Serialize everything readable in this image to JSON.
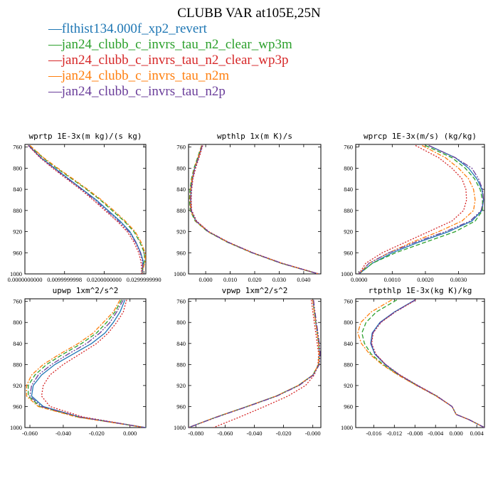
{
  "title": "CLUBB VAR at105E,25N",
  "colors": {
    "blue": "#1f77b4",
    "green": "#2ca02c",
    "red": "#d62728",
    "orange": "#ff7f0e",
    "purple": "#6a3d9a"
  },
  "legend": [
    {
      "label": "flthist134.000f_xp2_revert",
      "color": "#1f77b4",
      "dash": "solid"
    },
    {
      "label": "jan24_clubb_c_invrs_tau_n2_clear_wp3m",
      "color": "#2ca02c",
      "dash": "6,3"
    },
    {
      "label": "jan24_clubb_c_invrs_tau_n2_clear_wp3p",
      "color": "#d62728",
      "dash": "2,2"
    },
    {
      "label": "jan24_clubb_c_invrs_tau_n2m",
      "color": "#ff7f0e",
      "dash": "6,2,2,2"
    },
    {
      "label": "jan24_clubb_c_invrs_tau_n2p",
      "color": "#6a3d9a",
      "dash": "8,2,2,2,2,2"
    }
  ],
  "chart_data": [
    {
      "type": "line",
      "title": "wprtp 1E-3x(m kg)/(s kg)",
      "xlim": [
        0,
        0.0305
      ],
      "ylim": [
        1000,
        755
      ],
      "y_reversed": true,
      "xticks": [
        0,
        0.0099999998,
        0.02,
        0.029999999
      ],
      "xtick_labels": [
        "0.0000000000",
        "0.0099999998",
        "0.0200000000",
        "0.0299999990"
      ],
      "yticks": [
        760,
        800,
        840,
        880,
        920,
        960,
        1000
      ],
      "y": [
        757,
        780,
        800,
        820,
        840,
        860,
        880,
        900,
        920,
        940,
        960,
        975,
        985,
        995,
        1000
      ],
      "series": [
        {
          "name": "flthist134.000f_xp2_revert",
          "values": [
            0.001,
            0.004,
            0.0075,
            0.011,
            0.0145,
            0.018,
            0.021,
            0.024,
            0.0265,
            0.028,
            0.0292,
            0.0298,
            0.0298,
            0.0297,
            0.0296
          ]
        },
        {
          "name": "jan24_clubb_c_invrs_tau_n2_clear_wp3m",
          "values": [
            0.0012,
            0.0045,
            0.008,
            0.0118,
            0.0155,
            0.019,
            0.022,
            0.025,
            0.0275,
            0.029,
            0.0301,
            0.0302,
            0.0298,
            0.0295,
            0.0294
          ]
        },
        {
          "name": "jan24_clubb_c_invrs_tau_n2_clear_wp3p",
          "values": [
            0.0008,
            0.0038,
            0.007,
            0.0105,
            0.014,
            0.0172,
            0.0202,
            0.0232,
            0.0258,
            0.0275,
            0.0287,
            0.0292,
            0.0294,
            0.0294,
            0.0293
          ]
        },
        {
          "name": "jan24_clubb_c_invrs_tau_n2m",
          "values": [
            0.0013,
            0.0047,
            0.0083,
            0.0121,
            0.0158,
            0.0193,
            0.0224,
            0.0253,
            0.0278,
            0.0293,
            0.0303,
            0.0304,
            0.03,
            0.0297,
            0.0296
          ]
        },
        {
          "name": "jan24_clubb_c_invrs_tau_n2p",
          "values": [
            0.0009,
            0.004,
            0.0073,
            0.0108,
            0.0143,
            0.0176,
            0.0206,
            0.0236,
            0.0262,
            0.0279,
            0.0291,
            0.0296,
            0.0297,
            0.0296,
            0.0295
          ]
        }
      ]
    },
    {
      "type": "line",
      "title": "wpthlp 1x(m K)/s",
      "xlim": [
        -0.007,
        0.047
      ],
      "ylim": [
        1000,
        755
      ],
      "y_reversed": true,
      "xticks": [
        0,
        0.01,
        0.02,
        0.03,
        0.04
      ],
      "xtick_labels": [
        "0.000",
        "0.010",
        "0.020",
        "0.030",
        "0.040"
      ],
      "yticks": [
        760,
        800,
        840,
        880,
        920,
        960,
        1000
      ],
      "y": [
        757,
        780,
        800,
        820,
        840,
        860,
        880,
        900,
        920,
        940,
        960,
        980,
        1000
      ],
      "series": [
        {
          "name": "flthist134.000f_xp2_revert",
          "values": [
            -0.0015,
            -0.003,
            -0.0045,
            -0.0055,
            -0.006,
            -0.0062,
            -0.006,
            -0.004,
            0.001,
            0.009,
            0.019,
            0.031,
            0.046
          ]
        },
        {
          "name": "jan24_clubb_c_invrs_tau_n2_clear_wp3m",
          "values": [
            -0.0017,
            -0.0033,
            -0.0048,
            -0.0058,
            -0.0064,
            -0.0066,
            -0.0063,
            -0.0043,
            0.0008,
            0.0088,
            0.0188,
            0.0308,
            0.0458
          ]
        },
        {
          "name": "jan24_clubb_c_invrs_tau_n2_clear_wp3p",
          "values": [
            -0.0012,
            -0.0027,
            -0.0041,
            -0.0052,
            -0.0057,
            -0.0059,
            -0.0057,
            -0.0037,
            0.0013,
            0.0093,
            0.0193,
            0.0313,
            0.0462
          ]
        },
        {
          "name": "jan24_clubb_c_invrs_tau_n2m",
          "values": [
            -0.0016,
            -0.0031,
            -0.0046,
            -0.0056,
            -0.0062,
            -0.0064,
            -0.0061,
            -0.0041,
            0.001,
            0.009,
            0.019,
            0.031,
            0.046
          ]
        },
        {
          "name": "jan24_clubb_c_invrs_tau_n2p",
          "values": [
            -0.0014,
            -0.0029,
            -0.0044,
            -0.0054,
            -0.0059,
            -0.0061,
            -0.0059,
            -0.0039,
            0.0011,
            0.0091,
            0.0191,
            0.0311,
            0.046
          ]
        }
      ]
    },
    {
      "type": "line",
      "title": "wprcp 1E-3x(m/s) (kg/kg)",
      "xlim": [
        -0.0001,
        0.00378
      ],
      "ylim": [
        1000,
        755
      ],
      "y_reversed": true,
      "xticks": [
        0,
        0.001,
        0.002,
        0.003
      ],
      "xtick_labels": [
        "0.0000",
        "0.0010",
        "0.0020",
        "0.0030"
      ],
      "yticks": [
        760,
        800,
        840,
        880,
        920,
        960,
        1000
      ],
      "y": [
        757,
        780,
        800,
        820,
        840,
        860,
        880,
        900,
        920,
        940,
        960,
        980,
        1000
      ],
      "series": [
        {
          "name": "flthist134.000f_xp2_revert",
          "values": [
            0.0021,
            0.0029,
            0.0033,
            0.00355,
            0.0037,
            0.00375,
            0.0037,
            0.0034,
            0.0027,
            0.0018,
            0.001,
            0.0004,
            0.0
          ]
        },
        {
          "name": "jan24_clubb_c_invrs_tau_n2_clear_wp3m",
          "values": [
            0.002,
            0.0028,
            0.0032,
            0.00348,
            0.00365,
            0.00372,
            0.00372,
            0.0035,
            0.0029,
            0.002,
            0.0011,
            0.0004,
            0.0
          ]
        },
        {
          "name": "jan24_clubb_c_invrs_tau_n2_clear_wp3p",
          "values": [
            0.0017,
            0.0024,
            0.0028,
            0.0031,
            0.00322,
            0.00324,
            0.00315,
            0.0028,
            0.0021,
            0.0014,
            0.0007,
            0.0002,
            0.0
          ]
        },
        {
          "name": "jan24_clubb_c_invrs_tau_n2m",
          "values": [
            0.0019,
            0.0026,
            0.003,
            0.0033,
            0.00345,
            0.0035,
            0.00345,
            0.0031,
            0.0024,
            0.0016,
            0.0009,
            0.0003,
            0.0
          ]
        },
        {
          "name": "jan24_clubb_c_invrs_tau_n2p",
          "values": [
            0.0021,
            0.0029,
            0.0034,
            0.0036,
            0.00372,
            0.00375,
            0.00368,
            0.00335,
            0.0026,
            0.0017,
            0.0009,
            0.0003,
            0.0
          ]
        }
      ]
    },
    {
      "type": "line",
      "title": "upwp 1xm^2/s^2",
      "xlim": [
        -0.063,
        0.0095
      ],
      "ylim": [
        1000,
        755
      ],
      "y_reversed": true,
      "xticks": [
        -0.06,
        -0.04,
        -0.02,
        0
      ],
      "xtick_labels": [
        "-0.060",
        "-0.040",
        "-0.020",
        "0.000"
      ],
      "yticks": [
        760,
        800,
        840,
        880,
        920,
        960,
        1000
      ],
      "y": [
        757,
        780,
        800,
        820,
        840,
        860,
        880,
        900,
        920,
        940,
        960,
        980,
        1000
      ],
      "series": [
        {
          "name": "flthist134.000f_xp2_revert",
          "values": [
            -0.003,
            -0.006,
            -0.01,
            -0.015,
            -0.023,
            -0.034,
            -0.045,
            -0.053,
            -0.058,
            -0.059,
            -0.052,
            -0.03,
            0.0095
          ]
        },
        {
          "name": "jan24_clubb_c_invrs_tau_n2_clear_wp3m",
          "values": [
            -0.005,
            -0.009,
            -0.014,
            -0.02,
            -0.029,
            -0.04,
            -0.05,
            -0.057,
            -0.061,
            -0.061,
            -0.054,
            -0.031,
            0.009
          ]
        },
        {
          "name": "jan24_clubb_c_invrs_tau_n2_clear_wp3p",
          "values": [
            -0.002,
            -0.004,
            -0.008,
            -0.013,
            -0.02,
            -0.03,
            -0.04,
            -0.048,
            -0.052,
            -0.053,
            -0.048,
            -0.028,
            0.009
          ]
        },
        {
          "name": "jan24_clubb_c_invrs_tau_n2m",
          "values": [
            -0.006,
            -0.01,
            -0.016,
            -0.022,
            -0.031,
            -0.042,
            -0.052,
            -0.059,
            -0.062,
            -0.062,
            -0.055,
            -0.032,
            0.009
          ]
        },
        {
          "name": "jan24_clubb_c_invrs_tau_n2p",
          "values": [
            -0.004,
            -0.008,
            -0.012,
            -0.018,
            -0.026,
            -0.037,
            -0.047,
            -0.055,
            -0.059,
            -0.06,
            -0.053,
            -0.03,
            0.009
          ]
        }
      ]
    },
    {
      "type": "line",
      "title": "vpwp 1xm^2/s^2",
      "xlim": [
        -0.085,
        0.0055
      ],
      "ylim": [
        1000,
        755
      ],
      "y_reversed": true,
      "xticks": [
        -0.08,
        -0.06,
        -0.04,
        -0.02,
        0
      ],
      "xtick_labels": [
        "-0.080",
        "-0.060",
        "-0.040",
        "-0.020",
        "-0.000"
      ],
      "yticks": [
        760,
        800,
        840,
        880,
        920,
        960,
        1000
      ],
      "y": [
        757,
        780,
        800,
        820,
        840,
        860,
        880,
        900,
        920,
        940,
        960,
        980,
        1000
      ],
      "series": [
        {
          "name": "flthist134.000f_xp2_revert",
          "values": [
            0.0,
            0.001,
            0.002,
            0.003,
            0.004,
            0.0045,
            0.004,
            0.0,
            -0.01,
            -0.025,
            -0.045,
            -0.066,
            -0.085
          ]
        },
        {
          "name": "jan24_clubb_c_invrs_tau_n2_clear_wp3m",
          "values": [
            0.0,
            0.001,
            0.002,
            0.003,
            0.004,
            0.0045,
            0.004,
            0.0,
            -0.01,
            -0.025,
            -0.045,
            -0.066,
            -0.085
          ]
        },
        {
          "name": "jan24_clubb_c_invrs_tau_n2_clear_wp3p",
          "values": [
            -0.001,
            0.0,
            0.001,
            0.002,
            0.003,
            0.004,
            0.0035,
            0.001,
            -0.005,
            -0.017,
            -0.033,
            -0.05,
            -0.068
          ]
        },
        {
          "name": "jan24_clubb_c_invrs_tau_n2m",
          "values": [
            0.0,
            0.001,
            0.002,
            0.003,
            0.004,
            0.0045,
            0.004,
            0.0,
            -0.01,
            -0.025,
            -0.045,
            -0.066,
            -0.085
          ]
        },
        {
          "name": "jan24_clubb_c_invrs_tau_n2p",
          "values": [
            0.0005,
            0.0015,
            0.0025,
            0.0035,
            0.0045,
            0.005,
            0.0045,
            0.0005,
            -0.0095,
            -0.0245,
            -0.0445,
            -0.0655,
            -0.085
          ]
        }
      ]
    },
    {
      "type": "line",
      "title": "rtpthlp 1E-3x(kg K)/kg",
      "xlim": [
        -0.0195,
        0.0055
      ],
      "ylim": [
        1000,
        755
      ],
      "y_reversed": true,
      "xticks": [
        -0.016,
        -0.012,
        -0.008,
        -0.004,
        0,
        0.004
      ],
      "xtick_labels": [
        "-0.016",
        "-0.012",
        "-0.008",
        "-0.004",
        "0.000",
        "0.004"
      ],
      "yticks": [
        760,
        800,
        840,
        880,
        920,
        960,
        1000
      ],
      "y": [
        757,
        780,
        800,
        820,
        840,
        860,
        880,
        900,
        920,
        940,
        960,
        975,
        985,
        995,
        1000
      ],
      "series": [
        {
          "name": "flthist134.000f_xp2_revert",
          "values": [
            -0.008,
            -0.012,
            -0.0148,
            -0.0163,
            -0.0166,
            -0.0158,
            -0.0138,
            -0.011,
            -0.0075,
            -0.0038,
            -0.0008,
            0.0,
            0.0025,
            0.0045,
            0.0055
          ]
        },
        {
          "name": "jan24_clubb_c_invrs_tau_n2_clear_wp3m",
          "values": [
            -0.0115,
            -0.0155,
            -0.0175,
            -0.0183,
            -0.0178,
            -0.0165,
            -0.0142,
            -0.0112,
            -0.0076,
            -0.0038,
            -0.0008,
            0.0,
            0.0025,
            0.0045,
            0.0055
          ]
        },
        {
          "name": "jan24_clubb_c_invrs_tau_n2_clear_wp3p",
          "values": [
            -0.0078,
            -0.0118,
            -0.0146,
            -0.0161,
            -0.0164,
            -0.0156,
            -0.0137,
            -0.0109,
            -0.0074,
            -0.0037,
            -0.0008,
            0.0,
            0.0025,
            0.0045,
            0.0055
          ]
        },
        {
          "name": "jan24_clubb_c_invrs_tau_n2m",
          "values": [
            -0.0125,
            -0.0165,
            -0.0185,
            -0.0191,
            -0.0184,
            -0.0168,
            -0.0144,
            -0.0113,
            -0.0077,
            -0.0039,
            -0.0008,
            0.0,
            0.0025,
            0.0045,
            0.0055
          ]
        },
        {
          "name": "jan24_clubb_c_invrs_tau_n2p",
          "values": [
            -0.0079,
            -0.0119,
            -0.0147,
            -0.0162,
            -0.0165,
            -0.0157,
            -0.0137,
            -0.011,
            -0.0075,
            -0.0038,
            -0.0008,
            0.0,
            0.0025,
            0.0045,
            0.0055
          ]
        }
      ]
    }
  ]
}
